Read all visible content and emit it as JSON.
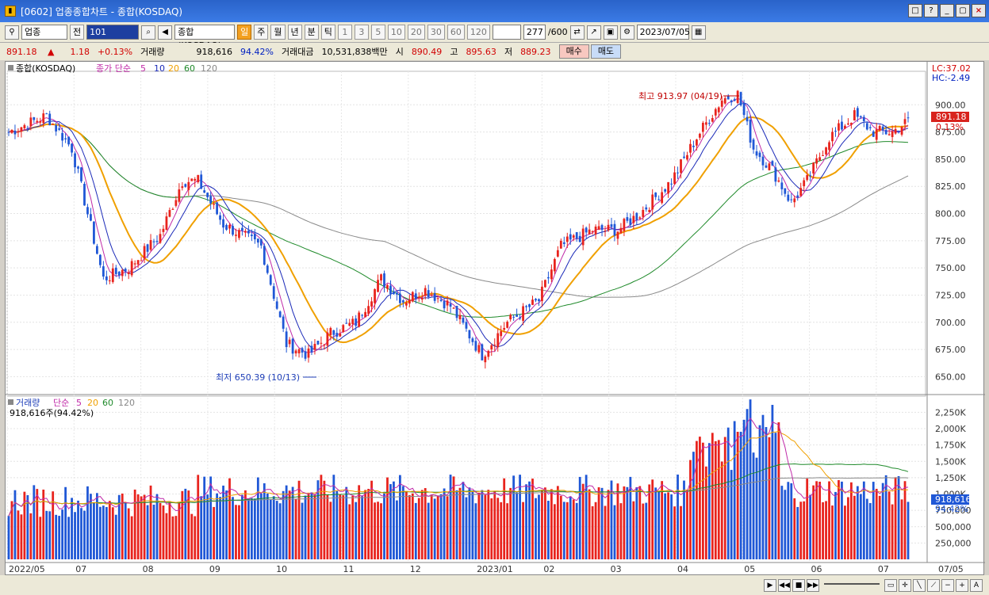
{
  "window": {
    "title": "[0602] 업종종합차트 - 종합(KOSDAQ)",
    "buttons": [
      "□",
      "?",
      "_",
      "▢",
      "×"
    ]
  },
  "toolbar": {
    "market": "업종",
    "scope": "전",
    "code": "101",
    "index_name": "종합(KOSDAQ)",
    "periods": [
      "일",
      "주",
      "월",
      "년",
      "분",
      "틱"
    ],
    "active_period": "일",
    "intervals": [
      "1",
      "3",
      "5",
      "10",
      "20",
      "30",
      "60",
      "120"
    ],
    "count_current": "277",
    "count_max": "/600",
    "date": "2023/07/05"
  },
  "quote": {
    "price": "891.18",
    "arrow": "▲",
    "change": "1.18",
    "change_pct": "+0.13%",
    "volume_label": "거래량",
    "volume": "918,616",
    "volume_ratio": "94.42%",
    "amount_label": "거래대금",
    "amount": "10,531,838백만",
    "open_label": "시",
    "open": "890.49",
    "high_label": "고",
    "high": "895.63",
    "low_label": "저",
    "low": "889.23",
    "buy_label": "매수",
    "sell_label": "매도"
  },
  "price_panel": {
    "legend_title": "종합(KOSDAQ)",
    "legend_ma": "종가 단순",
    "ma_periods": [
      "5",
      "10",
      "20",
      "60",
      "120"
    ],
    "lc": "LC:37.02",
    "hc": "HC:-2.49",
    "y_ticks": [
      "900.00",
      "875.00",
      "850.00",
      "825.00",
      "800.00",
      "775.00",
      "750.00",
      "725.00",
      "700.00",
      "675.00",
      "650.00"
    ],
    "current_label": "891.18",
    "current_pct": "0.13%",
    "high_annotation": "최고 913.97 (04/19)",
    "low_annotation": "최저 650.39 (10/13)"
  },
  "volume_panel": {
    "legend_title": "거래량",
    "legend_ma": "단순",
    "ma_periods": [
      "5",
      "20",
      "60",
      "120"
    ],
    "sub": "918,616주(94.42%)",
    "y_ticks": [
      "2,250K",
      "2,000K",
      "1,750K",
      "1,500K",
      "1,250K",
      "1,000K",
      "750,000",
      "500,000",
      "250,000"
    ],
    "current_label": "918,616",
    "current_pct": "94.42%"
  },
  "x_labels": [
    "2022/05",
    "07",
    "08",
    "09",
    "10",
    "11",
    "12",
    "2023/01",
    "02",
    "03",
    "04",
    "05",
    "06",
    "07"
  ],
  "x_right_label": "07/05",
  "colors": {
    "up": "#e8231d",
    "down": "#1f57d6",
    "ma5": "#c02aa8",
    "ma10": "#1b2ab8",
    "ma20": "#f0a000",
    "ma60": "#1f8a2a",
    "ma120": "#8a8a8a"
  },
  "chart_data": {
    "type": "candlestick",
    "waypoints_price": [
      [
        0,
        875
      ],
      [
        12,
        890
      ],
      [
        20,
        860
      ],
      [
        30,
        740
      ],
      [
        38,
        750
      ],
      [
        48,
        780
      ],
      [
        55,
        830
      ],
      [
        60,
        830
      ],
      [
        68,
        790
      ],
      [
        80,
        770
      ],
      [
        88,
        680
      ],
      [
        95,
        670
      ],
      [
        102,
        690
      ],
      [
        110,
        700
      ],
      [
        118,
        740
      ],
      [
        125,
        720
      ],
      [
        132,
        730
      ],
      [
        140,
        715
      ],
      [
        150,
        670
      ],
      [
        158,
        700
      ],
      [
        168,
        720
      ],
      [
        175,
        770
      ],
      [
        185,
        785
      ],
      [
        193,
        785
      ],
      [
        200,
        800
      ],
      [
        210,
        830
      ],
      [
        218,
        870
      ],
      [
        226,
        905
      ],
      [
        231,
        910
      ],
      [
        236,
        860
      ],
      [
        242,
        840
      ],
      [
        248,
        810
      ],
      [
        253,
        830
      ],
      [
        260,
        870
      ],
      [
        268,
        890
      ],
      [
        274,
        875
      ],
      [
        280,
        875
      ],
      [
        285,
        885
      ]
    ],
    "ylim": [
      635,
      925
    ],
    "volume_ylim": [
      0,
      2400000
    ],
    "count": 286
  }
}
